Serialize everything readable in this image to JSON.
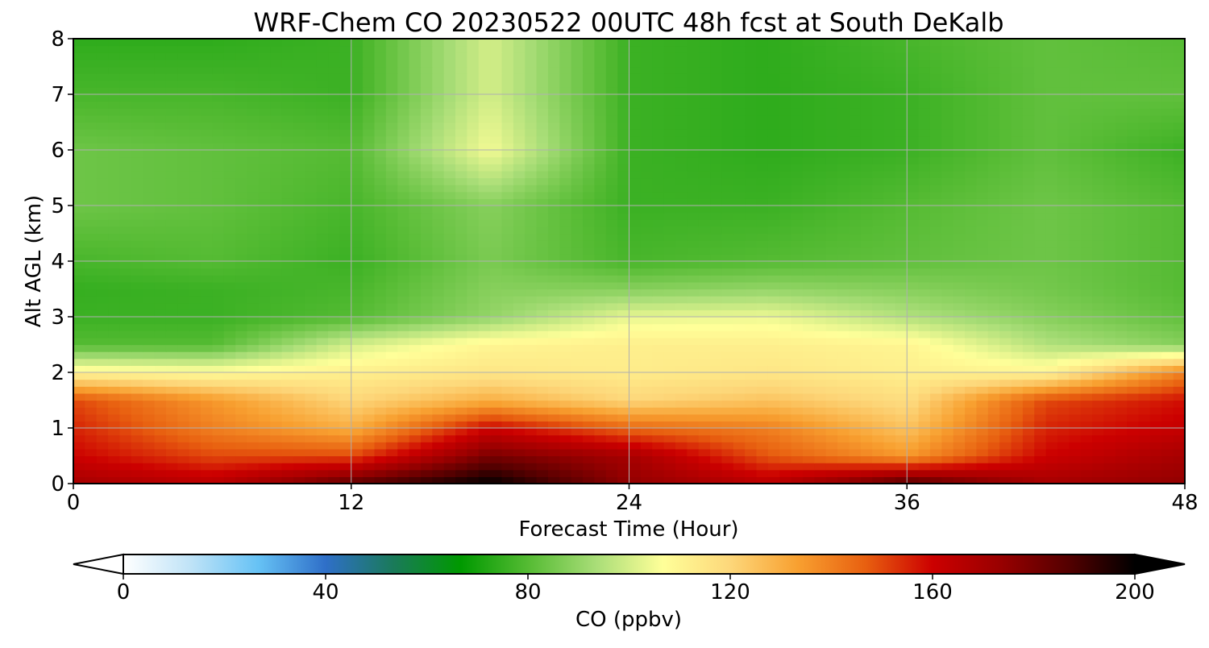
{
  "chart_data": {
    "type": "heatmap",
    "title": "WRF-Chem CO  20230522 00UTC 48h fcst at South DeKalb",
    "xlabel": "Forecast Time (Hour)",
    "ylabel": "Alt AGL (km)",
    "xlim": [
      0,
      48
    ],
    "ylim": [
      0,
      8
    ],
    "xticks": [
      "0",
      "12",
      "24",
      "36",
      "48"
    ],
    "yticks": [
      "0",
      "1",
      "2",
      "3",
      "4",
      "5",
      "6",
      "7",
      "8"
    ],
    "grid": true,
    "x": [
      0,
      6,
      12,
      18,
      24,
      30,
      36,
      42,
      48
    ],
    "y": [
      0,
      0.5,
      1,
      1.5,
      2,
      2.5,
      3,
      3.5,
      4,
      5,
      6,
      7,
      8
    ],
    "z": [
      [
        170,
        165,
        185,
        200,
        175,
        165,
        188,
        170,
        175
      ],
      [
        160,
        150,
        150,
        180,
        170,
        148,
        135,
        160,
        170
      ],
      [
        155,
        140,
        130,
        160,
        145,
        140,
        125,
        155,
        162
      ],
      [
        150,
        135,
        120,
        130,
        120,
        125,
        118,
        150,
        158
      ],
      [
        110,
        108,
        112,
        115,
        113,
        115,
        112,
        110,
        140
      ],
      [
        80,
        80,
        100,
        110,
        112,
        112,
        110,
        95,
        88
      ],
      [
        76,
        76,
        80,
        90,
        103,
        104,
        95,
        88,
        82
      ],
      [
        75,
        76,
        78,
        88,
        88,
        90,
        88,
        85,
        80
      ],
      [
        78,
        80,
        76,
        86,
        78,
        80,
        82,
        84,
        80
      ],
      [
        84,
        82,
        78,
        88,
        76,
        76,
        80,
        84,
        80
      ],
      [
        84,
        82,
        80,
        105,
        76,
        74,
        76,
        82,
        76
      ],
      [
        78,
        78,
        76,
        100,
        76,
        74,
        76,
        82,
        82
      ],
      [
        74,
        74,
        76,
        100,
        76,
        74,
        78,
        82,
        80
      ]
    ],
    "colorbar": {
      "label": "CO  (ppbv)",
      "ticks": [
        "0",
        "40",
        "80",
        "120",
        "160",
        "200"
      ],
      "range": [
        0,
        200
      ],
      "extend": "both",
      "colors": [
        "#ffffff",
        "#bfe3f7",
        "#66c2f5",
        "#2f6fc8",
        "#1a7a5a",
        "#009900",
        "#55bb33",
        "#a8dd77",
        "#ffff99",
        "#fdd77a",
        "#f8a030",
        "#e86010",
        "#cc0000",
        "#990000",
        "#550000",
        "#000000"
      ]
    }
  }
}
